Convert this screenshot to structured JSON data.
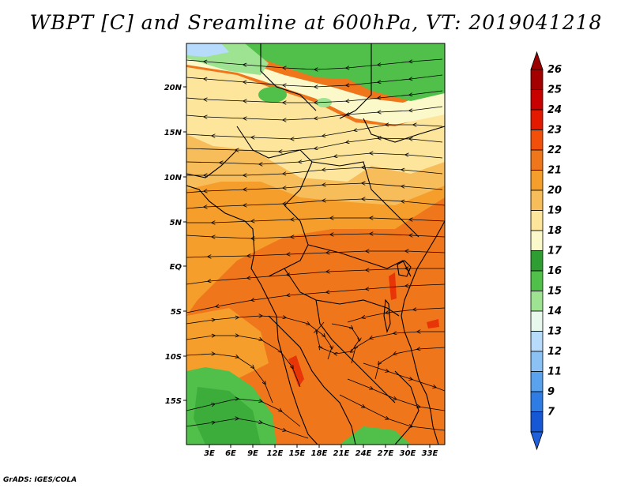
{
  "title": "WBPT [C] and Sreamline at 600hPa, VT: 2019041218",
  "credit": "GrADS: IGES/COLA",
  "map": {
    "lon_labels": [
      "3E",
      "6E",
      "9E",
      "12E",
      "15E",
      "18E",
      "21E",
      "24E",
      "27E",
      "30E",
      "33E"
    ],
    "lat_labels": [
      "20N",
      "15N",
      "10N",
      "5N",
      "EQ",
      "5S",
      "10S",
      "15S"
    ],
    "fields": [
      "wet-bulb potential temperature shading",
      "600hPa streamlines",
      "country borders",
      "coastlines"
    ]
  },
  "colorbar": {
    "labels": [
      "26",
      "25",
      "24",
      "23",
      "22",
      "21",
      "20",
      "19",
      "18",
      "17",
      "16",
      "15",
      "14",
      "13",
      "12",
      "11",
      "9",
      "7"
    ],
    "colors": [
      "#a50000",
      "#c80000",
      "#e41a00",
      "#f24f0a",
      "#f0761c",
      "#f59e2b",
      "#f7bd5a",
      "#fde69b",
      "#fbf8c9",
      "#2f9e32",
      "#50c04a",
      "#9de392",
      "#e8f8ec",
      "#b7dcfb",
      "#8cc1f5",
      "#5aa1ee",
      "#2f7de4",
      "#1557d4"
    ],
    "top_arrow_color": "#9a0000",
    "bottom_arrow_color": "#2060d8"
  }
}
